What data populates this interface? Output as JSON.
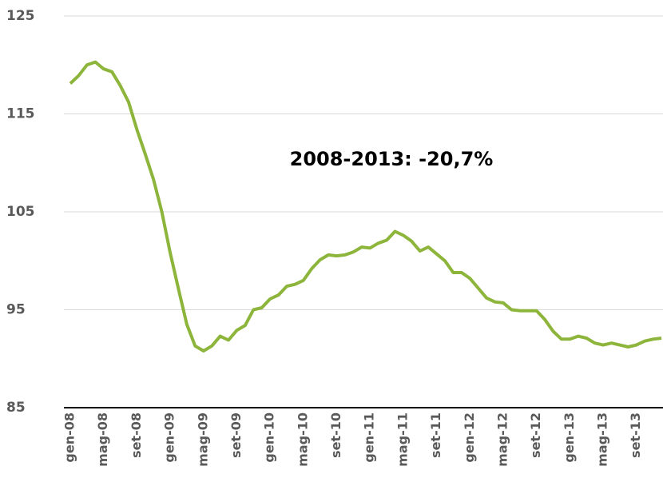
{
  "chart_data": {
    "type": "line",
    "annotation": "2008-2013: -20,7%",
    "categories": [
      "gen-08",
      null,
      null,
      null,
      "mag-08",
      null,
      null,
      null,
      "set-08",
      null,
      null,
      null,
      "gen-09",
      null,
      null,
      null,
      "mag-09",
      null,
      null,
      null,
      "set-09",
      null,
      null,
      null,
      "gen-10",
      null,
      null,
      null,
      "mag-10",
      null,
      null,
      null,
      "set-10",
      null,
      null,
      null,
      "gen-11",
      null,
      null,
      null,
      "mag-11",
      null,
      null,
      null,
      "set-11",
      null,
      null,
      null,
      "gen-12",
      null,
      null,
      null,
      "mag-12",
      null,
      null,
      null,
      "set-12",
      null,
      null,
      null,
      "gen-13",
      null,
      null,
      null,
      "mag-13",
      null,
      null,
      null,
      "set-13",
      null,
      null,
      null
    ],
    "series": [
      {
        "color": "#8db53c",
        "values": [
          118.1,
          118.9,
          120.0,
          120.3,
          119.6,
          119.3,
          117.9,
          116.2,
          113.4,
          110.9,
          108.3,
          105.0,
          100.8,
          97.1,
          93.5,
          91.3,
          90.8,
          91.3,
          92.3,
          91.9,
          92.9,
          93.4,
          95.0,
          95.2,
          96.1,
          96.5,
          97.4,
          97.6,
          98.0,
          99.2,
          100.1,
          100.6,
          100.5,
          100.6,
          100.9,
          101.4,
          101.3,
          101.8,
          102.1,
          103.0,
          102.6,
          102.0,
          101.0,
          101.4,
          100.7,
          100.0,
          98.8,
          98.8,
          98.2,
          97.2,
          96.2,
          95.8,
          95.7,
          95.0,
          94.9,
          94.9,
          94.9,
          94.0,
          92.8,
          92.0,
          92.0,
          92.3,
          92.1,
          91.6,
          91.4,
          91.6,
          91.4,
          91.2,
          91.4,
          91.8,
          92.0,
          92.1
        ]
      }
    ],
    "ylim": [
      85,
      125
    ],
    "yticks": [
      85,
      95,
      105,
      115,
      125
    ],
    "grid": true
  }
}
